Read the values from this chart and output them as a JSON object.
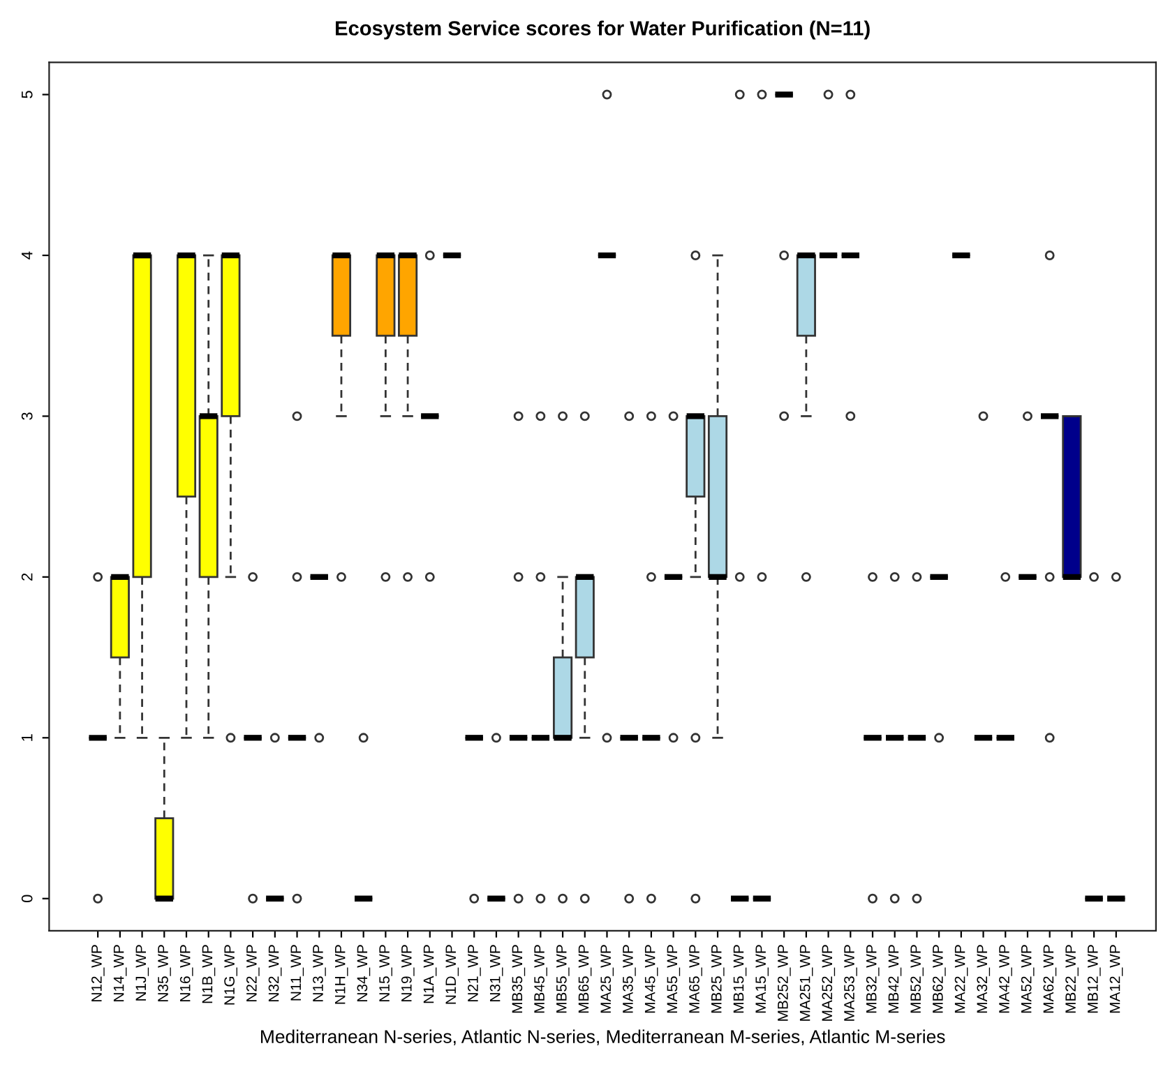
{
  "chart_data": {
    "type": "box",
    "title": "Ecosystem Service scores for Water Purification (N=11)",
    "xlabel": "Mediterranean N-series, Atlantic N-series, Mediterranean M-series, Atlantic M-series",
    "categories": [
      "N12_WP",
      "N14_WP",
      "N1J_WP",
      "N35_WP",
      "N16_WP",
      "N1B_WP",
      "N1G_WP",
      "N22_WP",
      "N32_WP",
      "N11_WP",
      "N13_WP",
      "N1H_WP",
      "N34_WP",
      "N15_WP",
      "N19_WP",
      "N1A_WP",
      "N1D_WP",
      "N21_WP",
      "N31_WP",
      "MB35_WP",
      "MB45_WP",
      "MB55_WP",
      "MB65_WP",
      "MA25_WP",
      "MA35_WP",
      "MA45_WP",
      "MA55_WP",
      "MA65_WP",
      "MB25_WP",
      "MB15_WP",
      "MA15_WP",
      "MB252_WP",
      "MA251_WP",
      "MA252_WP",
      "MA253_WP",
      "MB32_WP",
      "MB42_WP",
      "MB52_WP",
      "MB62_WP",
      "MA22_WP",
      "MA32_WP",
      "MA42_WP",
      "MA52_WP",
      "MA62_WP",
      "MB22_WP",
      "MB12_WP",
      "MA12_WP"
    ],
    "colors": [
      null,
      "#ffff00",
      "#ffff00",
      "#ffff00",
      "#ffff00",
      "#ffff00",
      "#ffff00",
      null,
      null,
      null,
      null,
      "#ffa500",
      null,
      "#ffa500",
      "#ffa500",
      null,
      null,
      null,
      null,
      null,
      null,
      "#add8e6",
      "#add8e6",
      null,
      null,
      null,
      null,
      "#add8e6",
      "#add8e6",
      null,
      null,
      null,
      "#add8e6",
      null,
      null,
      null,
      null,
      null,
      null,
      null,
      null,
      null,
      null,
      null,
      "#00008b",
      null,
      null
    ],
    "boxes": [
      {
        "low": 1,
        "q1": 1,
        "median": 1,
        "q3": 1,
        "high": 1,
        "outliers": [
          0,
          2
        ]
      },
      {
        "low": 1,
        "q1": 1.5,
        "median": 2,
        "q3": 2,
        "high": 2
      },
      {
        "low": 1,
        "q1": 2,
        "median": 4,
        "q3": 4,
        "high": 4
      },
      {
        "low": 0,
        "q1": 0,
        "median": 0,
        "q3": 0.5,
        "high": 1
      },
      {
        "low": 1,
        "q1": 2.5,
        "median": 4,
        "q3": 4,
        "high": 4
      },
      {
        "low": 1,
        "q1": 2,
        "median": 3,
        "q3": 3,
        "high": 4
      },
      {
        "low": 2,
        "q1": 3,
        "median": 4,
        "q3": 4,
        "high": 4,
        "outliers": [
          1
        ]
      },
      {
        "low": 1,
        "q1": 1,
        "median": 1,
        "q3": 1,
        "high": 1,
        "outliers": [
          0,
          2
        ]
      },
      {
        "low": 0,
        "q1": 0,
        "median": 0,
        "q3": 0,
        "high": 0,
        "outliers": [
          1
        ]
      },
      {
        "low": 1,
        "q1": 1,
        "median": 1,
        "q3": 1,
        "high": 1,
        "outliers": [
          0,
          2,
          3
        ]
      },
      {
        "low": 2,
        "q1": 2,
        "median": 2,
        "q3": 2,
        "high": 2,
        "outliers": [
          1
        ]
      },
      {
        "low": 3,
        "q1": 3.5,
        "median": 4,
        "q3": 4,
        "high": 4,
        "outliers": [
          2
        ]
      },
      {
        "low": 0,
        "q1": 0,
        "median": 0,
        "q3": 0,
        "high": 0,
        "outliers": [
          1
        ]
      },
      {
        "low": 3,
        "q1": 3.5,
        "median": 4,
        "q3": 4,
        "high": 4,
        "outliers": [
          2
        ]
      },
      {
        "low": 3,
        "q1": 3.5,
        "median": 4,
        "q3": 4,
        "high": 4,
        "outliers": [
          2
        ]
      },
      {
        "low": 3,
        "q1": 3,
        "median": 3,
        "q3": 3,
        "high": 3,
        "outliers": [
          2,
          4
        ]
      },
      {
        "low": 4,
        "q1": 4,
        "median": 4,
        "q3": 4,
        "high": 4
      },
      {
        "low": 1,
        "q1": 1,
        "median": 1,
        "q3": 1,
        "high": 1,
        "outliers": [
          0
        ]
      },
      {
        "low": 0,
        "q1": 0,
        "median": 0,
        "q3": 0,
        "high": 0,
        "outliers": [
          1
        ]
      },
      {
        "low": 1,
        "q1": 1,
        "median": 1,
        "q3": 1,
        "high": 1,
        "outliers": [
          0,
          2,
          3
        ]
      },
      {
        "low": 1,
        "q1": 1,
        "median": 1,
        "q3": 1,
        "high": 1,
        "outliers": [
          0,
          2,
          3
        ]
      },
      {
        "low": 1,
        "q1": 1,
        "median": 1,
        "q3": 1.5,
        "high": 2,
        "outliers": [
          0,
          3
        ]
      },
      {
        "low": 1,
        "q1": 1.5,
        "median": 2,
        "q3": 2,
        "high": 2,
        "outliers": [
          0,
          3
        ]
      },
      {
        "low": 4,
        "q1": 4,
        "median": 4,
        "q3": 4,
        "high": 4,
        "outliers": [
          1,
          5
        ]
      },
      {
        "low": 1,
        "q1": 1,
        "median": 1,
        "q3": 1,
        "high": 1,
        "outliers": [
          0,
          3
        ]
      },
      {
        "low": 1,
        "q1": 1,
        "median": 1,
        "q3": 1,
        "high": 1,
        "outliers": [
          0,
          2,
          3
        ]
      },
      {
        "low": 2,
        "q1": 2,
        "median": 2,
        "q3": 2,
        "high": 2,
        "outliers": [
          1,
          3
        ]
      },
      {
        "low": 2,
        "q1": 2.5,
        "median": 3,
        "q3": 3,
        "high": 3,
        "outliers": [
          0,
          1,
          4
        ]
      },
      {
        "low": 1,
        "q1": 2,
        "median": 2,
        "q3": 3,
        "high": 4
      },
      {
        "low": 0,
        "q1": 0,
        "median": 0,
        "q3": 0,
        "high": 0,
        "outliers": [
          2,
          5
        ]
      },
      {
        "low": 0,
        "q1": 0,
        "median": 0,
        "q3": 0,
        "high": 0,
        "outliers": [
          2,
          5
        ]
      },
      {
        "low": 5,
        "q1": 5,
        "median": 5,
        "q3": 5,
        "high": 5,
        "outliers": [
          3,
          4
        ]
      },
      {
        "low": 3,
        "q1": 3.5,
        "median": 4,
        "q3": 4,
        "high": 4,
        "outliers": [
          2
        ]
      },
      {
        "low": 4,
        "q1": 4,
        "median": 4,
        "q3": 4,
        "high": 4,
        "outliers": [
          5
        ]
      },
      {
        "low": 4,
        "q1": 4,
        "median": 4,
        "q3": 4,
        "high": 4,
        "outliers": [
          3,
          5
        ]
      },
      {
        "low": 1,
        "q1": 1,
        "median": 1,
        "q3": 1,
        "high": 1,
        "outliers": [
          0,
          2
        ]
      },
      {
        "low": 1,
        "q1": 1,
        "median": 1,
        "q3": 1,
        "high": 1,
        "outliers": [
          0,
          2
        ]
      },
      {
        "low": 1,
        "q1": 1,
        "median": 1,
        "q3": 1,
        "high": 1,
        "outliers": [
          0,
          2
        ]
      },
      {
        "low": 2,
        "q1": 2,
        "median": 2,
        "q3": 2,
        "high": 2,
        "outliers": [
          1
        ]
      },
      {
        "low": 4,
        "q1": 4,
        "median": 4,
        "q3": 4,
        "high": 4
      },
      {
        "low": 1,
        "q1": 1,
        "median": 1,
        "q3": 1,
        "high": 1,
        "outliers": [
          3
        ]
      },
      {
        "low": 1,
        "q1": 1,
        "median": 1,
        "q3": 1,
        "high": 1,
        "outliers": [
          2
        ]
      },
      {
        "low": 2,
        "q1": 2,
        "median": 2,
        "q3": 2,
        "high": 2,
        "outliers": [
          3
        ]
      },
      {
        "low": 3,
        "q1": 3,
        "median": 3,
        "q3": 3,
        "high": 3,
        "outliers": [
          1,
          2,
          4
        ]
      },
      {
        "low": 2,
        "q1": 2,
        "median": 2,
        "q3": 3,
        "high": 3
      },
      {
        "low": 0,
        "q1": 0,
        "median": 0,
        "q3": 0,
        "high": 0,
        "outliers": [
          2
        ]
      },
      {
        "low": 0,
        "q1": 0,
        "median": 0,
        "q3": 0,
        "high": 0,
        "outliers": [
          2
        ]
      }
    ],
    "ylim": [
      -0.2,
      5.2
    ],
    "yticks": [
      0,
      1,
      2,
      3,
      4,
      5
    ],
    "grid": false
  }
}
